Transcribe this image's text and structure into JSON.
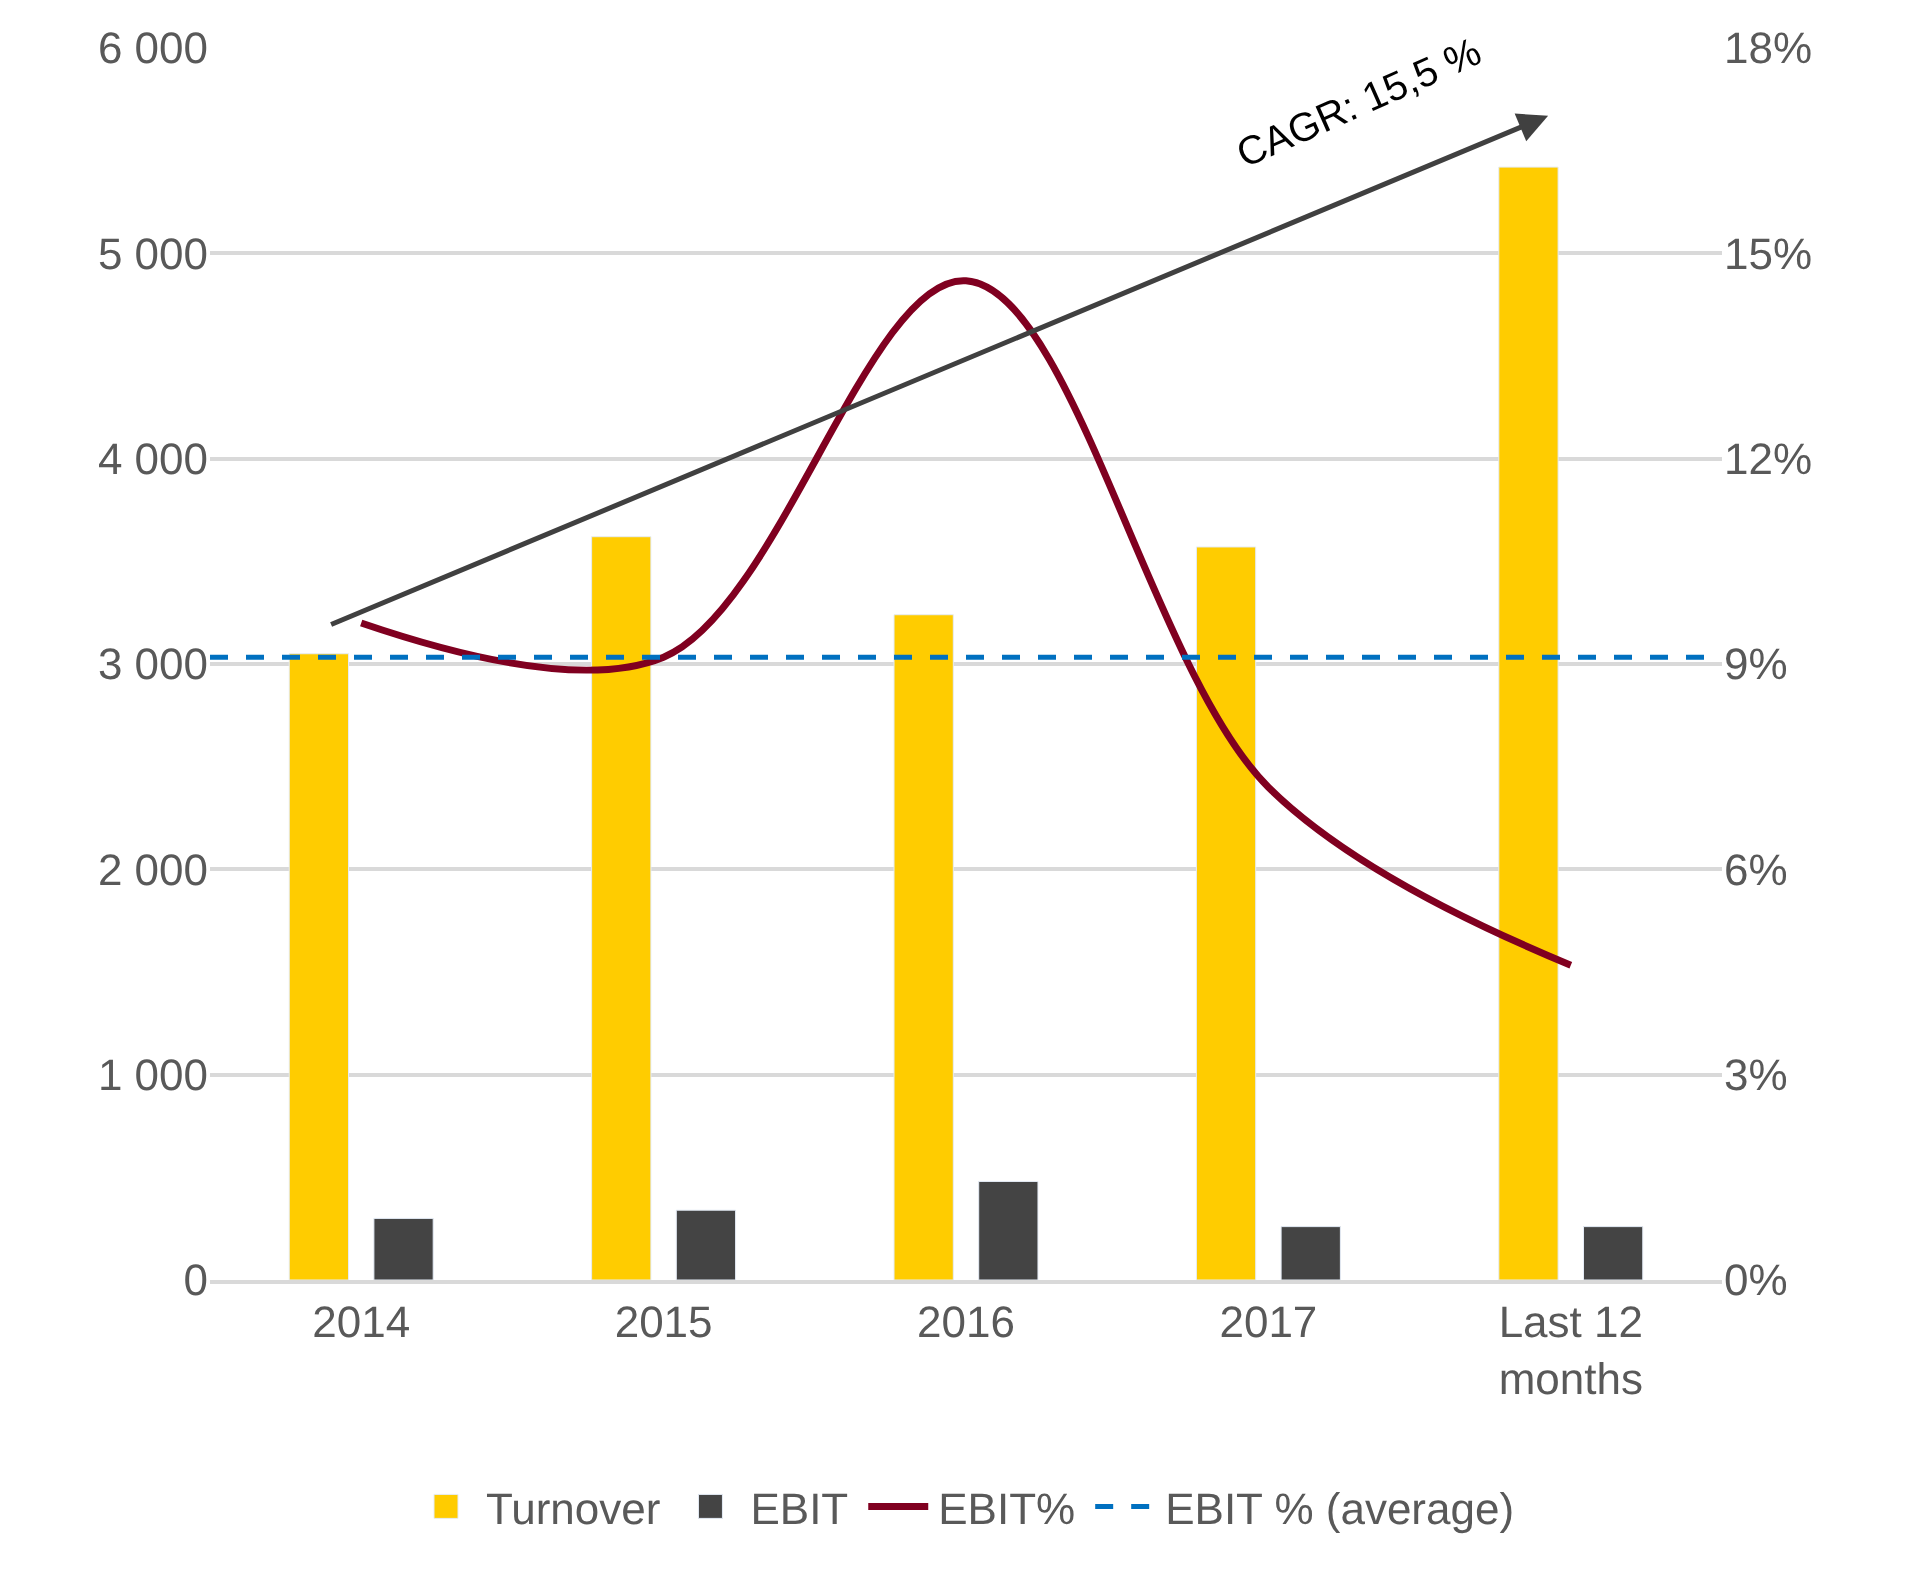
{
  "chart_data": {
    "type": "bar",
    "categories": [
      "2014",
      "2015",
      "2016",
      "2017",
      "Last 12 months"
    ],
    "series": [
      {
        "name": "Turnover",
        "color": "#ffcc00",
        "values": [
          3050,
          3620,
          3240,
          3570,
          5420
        ]
      },
      {
        "name": "EBIT",
        "color": "#444444",
        "values": [
          300,
          340,
          480,
          260,
          260
        ]
      },
      {
        "name": "EBIT%",
        "type": "line",
        "axis": "y2",
        "color": "#800020",
        "values": [
          9.6,
          9.1,
          14.6,
          7.2,
          4.6
        ]
      }
    ],
    "ref_lines": [
      {
        "axis": "y2",
        "value": 9.1,
        "label": "EBIT % (average)",
        "color": "#0070c0",
        "line_style": "dashed"
      }
    ],
    "annotations": [
      "CAGR: 15,5 %"
    ],
    "ylim": [
      0,
      6000
    ],
    "yticks": [
      0,
      {
        "value": 1000,
        "label": "1 000"
      },
      {
        "value": 2000,
        "label": "2 000"
      },
      {
        "value": 3000,
        "label": "3 000"
      },
      {
        "value": 4000,
        "label": "4 000"
      },
      {
        "value": 5000,
        "label": "5 000"
      },
      {
        "value": 6000,
        "label": "6 000"
      }
    ],
    "y2lim": [
      0,
      18
    ],
    "y2ticks": [
      {
        "value": 0,
        "label": "0%"
      },
      {
        "value": 3,
        "label": "3%"
      },
      {
        "value": 6,
        "label": "6%"
      },
      {
        "value": 9,
        "label": "9%"
      },
      {
        "value": 12,
        "label": "12%"
      },
      {
        "value": 15,
        "label": "15%"
      },
      {
        "value": 18,
        "label": "18%"
      }
    ],
    "grid": "y",
    "legend": "bottom"
  }
}
